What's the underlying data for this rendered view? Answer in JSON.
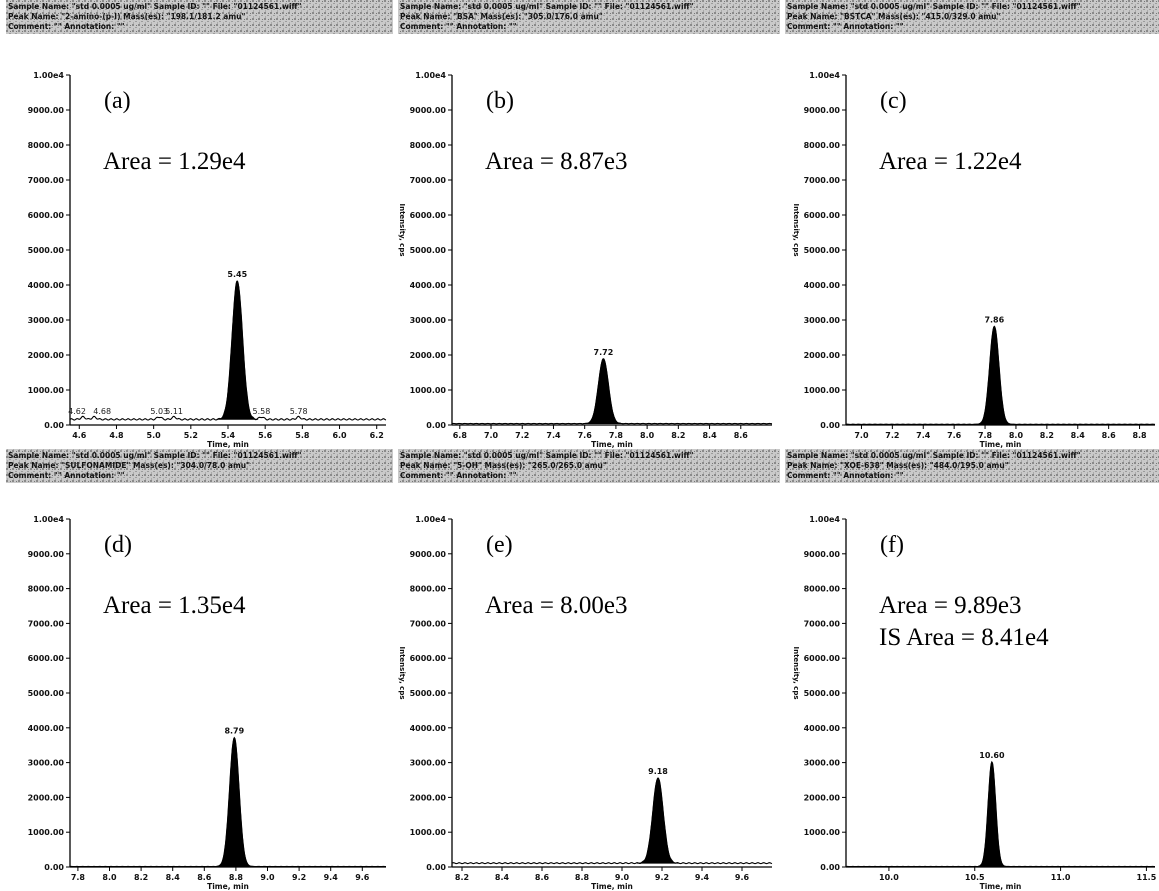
{
  "figure": {
    "header_rows": [
      [
        [
          "Sample Name: \"std 0.0005 ug/ml\"  Sample ID: \"\"  File: \"01124561.wiff\"",
          "Peak Name: \"2-amino-(p-I) Mass(es): \"198.1/181.2 amu\"",
          "Comment: \"\"  Annotation: \"\""
        ],
        [
          "Sample Name: \"std 0.0005 ug/ml\"  Sample ID: \"\"  File: \"01124561.wiff\"",
          "Peak Name: \"BSA\"  Mass(es): \"305.0/176.0 amu\"",
          "Comment: \"\"  Annotation: \"\""
        ],
        [
          "Sample Name: \"std 0.0005 ug/ml\"  Sample ID: \"\"  File: \"01124561.wiff\"",
          "Peak Name: \"BSTCA\"  Mass(es): \"415.0/329.0 amu\"",
          "Comment: \"\"  Annotation: \"\""
        ]
      ],
      [
        [
          "Sample Name: \"std 0.0005 ug/ml\"  Sample ID: \"\"  File: \"01124561.wiff\"",
          "Peak Name: \"SULFONAMIDE\"  Mass(es): \"304.0/78.0 amu\"",
          "Comment: \"\"  Annotation: \"\""
        ],
        [
          "Sample Name: \"std 0.0005 ug/ml\"  Sample ID: \"\"  File: \"01124561.wiff\"",
          "Peak Name: \"5-OH\"  Mass(es): \"265.0/265.0 amu\"",
          "Comment: \"\"  Annotation: \"\""
        ],
        [
          "Sample Name: \"std 0.0005 ug/ml\"  Sample ID: \"\"  File: \"01124561.wiff\"",
          "Peak Name: \"XOE-638\"  Mass(es): \"484.0/195.0 amu\"",
          "Comment: \"\"  Annotation: \"\""
        ]
      ]
    ]
  },
  "chart_data": [
    {
      "type": "line",
      "panel": "(a)",
      "annotations": [
        "Area = 1.29e4"
      ],
      "xlabel": "Time, min",
      "ylabel": "",
      "ylim": [
        0,
        10000
      ],
      "yticks": [
        "0.00",
        "1000.00",
        "2000.00",
        "3000.00",
        "4000.00",
        "5000.00",
        "6000.00",
        "7000.00",
        "8000.00",
        "9000.00",
        "1.00e4"
      ],
      "xlim": [
        4.55,
        6.25
      ],
      "xticks": [
        "4.6",
        "4.8",
        "5.0",
        "5.2",
        "5.4",
        "5.6",
        "5.8",
        "6.0",
        "6.2"
      ],
      "peaks": [
        {
          "rt": 5.45,
          "height": 3950,
          "width": 0.028,
          "label": "5.45"
        }
      ],
      "baseline": 160,
      "minor_peaks": [
        {
          "rt": 4.62,
          "height": 230,
          "label": "4.62"
        },
        {
          "rt": 4.68,
          "height": 230,
          "label": "4.68"
        },
        {
          "rt": 5.03,
          "height": 230,
          "label": "5.03"
        },
        {
          "rt": 5.11,
          "height": 230,
          "label": "5.11"
        },
        {
          "rt": 5.58,
          "height": 230,
          "label": "5.58"
        },
        {
          "rt": 5.78,
          "height": 230,
          "label": "5.78"
        }
      ]
    },
    {
      "type": "line",
      "panel": "(b)",
      "annotations": [
        "Area = 8.87e3"
      ],
      "xlabel": "Time, min",
      "ylabel": "Intensity, cps",
      "ylim": [
        0,
        10000
      ],
      "yticks": [
        "0.00",
        "1000.00",
        "2000.00",
        "3000.00",
        "4000.00",
        "5000.00",
        "6000.00",
        "7000.00",
        "8000.00",
        "9000.00",
        "1.00e4"
      ],
      "xlim": [
        6.75,
        8.8
      ],
      "xticks": [
        "6.8",
        "7.0",
        "7.2",
        "7.4",
        "7.6",
        "7.8",
        "8.0",
        "8.2",
        "8.4",
        "8.6"
      ],
      "peaks": [
        {
          "rt": 7.72,
          "height": 1850,
          "width": 0.032,
          "label": "7.72"
        }
      ],
      "baseline": 40,
      "minor_peaks": []
    },
    {
      "type": "line",
      "panel": "(c)",
      "annotations": [
        "Area = 1.22e4"
      ],
      "xlabel": "Time, min",
      "ylabel": "Intensity, cps",
      "ylim": [
        0,
        10000
      ],
      "yticks": [
        "0.00",
        "1000.00",
        "2000.00",
        "3000.00",
        "4000.00",
        "5000.00",
        "6000.00",
        "7000.00",
        "8000.00",
        "9000.00",
        "1.00e4"
      ],
      "xlim": [
        6.9,
        8.9
      ],
      "xticks": [
        "7.0",
        "7.2",
        "7.4",
        "7.6",
        "7.8",
        "8.0",
        "8.2",
        "8.4",
        "8.6",
        "8.8"
      ],
      "peaks": [
        {
          "rt": 7.86,
          "height": 2800,
          "width": 0.03,
          "label": "7.86"
        }
      ],
      "baseline": 20,
      "minor_peaks": []
    },
    {
      "type": "line",
      "panel": "(d)",
      "annotations": [
        "Area = 1.35e4"
      ],
      "xlabel": "Time, min",
      "ylabel": "",
      "ylim": [
        0,
        10000
      ],
      "yticks": [
        "0.00",
        "1000.00",
        "2000.00",
        "3000.00",
        "4000.00",
        "5000.00",
        "6000.00",
        "7000.00",
        "8000.00",
        "9000.00",
        "1.00e4"
      ],
      "xlim": [
        7.75,
        9.75
      ],
      "xticks": [
        "7.8",
        "8.0",
        "8.2",
        "8.4",
        "8.6",
        "8.8",
        "9.0",
        "9.2",
        "9.4",
        "9.6"
      ],
      "peaks": [
        {
          "rt": 8.79,
          "height": 3700,
          "width": 0.03,
          "label": "8.79"
        }
      ],
      "baseline": 15,
      "minor_peaks": []
    },
    {
      "type": "line",
      "panel": "(e)",
      "annotations": [
        "Area = 8.00e3"
      ],
      "xlabel": "Time, min",
      "ylabel": "Intensity, cps",
      "ylim": [
        0,
        10000
      ],
      "yticks": [
        "0.00",
        "1000.00",
        "2000.00",
        "3000.00",
        "4000.00",
        "5000.00",
        "6000.00",
        "7000.00",
        "8000.00",
        "9000.00",
        "1.00e4"
      ],
      "xlim": [
        8.15,
        9.75
      ],
      "xticks": [
        "8.2",
        "8.4",
        "8.6",
        "8.8",
        "9.0",
        "9.2",
        "9.4",
        "9.6"
      ],
      "peaks": [
        {
          "rt": 9.18,
          "height": 2450,
          "width": 0.026,
          "label": "9.18"
        }
      ],
      "baseline": 110,
      "minor_peaks": []
    },
    {
      "type": "line",
      "panel": "(f)",
      "annotations": [
        "Area = 9.89e3",
        "IS Area = 8.41e4"
      ],
      "xlabel": "Time, min",
      "ylabel": "Intensity, cps",
      "ylim": [
        0,
        10000
      ],
      "yticks": [
        "0.00",
        "1000.00",
        "2000.00",
        "3000.00",
        "4000.00",
        "5000.00",
        "6000.00",
        "7000.00",
        "8000.00",
        "9000.00",
        "1.00e4"
      ],
      "xlim": [
        9.75,
        11.55
      ],
      "xticks": [
        "10.0",
        "10.5",
        "11.0",
        "11.5"
      ],
      "peaks": [
        {
          "rt": 10.6,
          "height": 3000,
          "width": 0.022,
          "label": "10.60"
        }
      ],
      "baseline": 15,
      "minor_peaks": []
    }
  ]
}
